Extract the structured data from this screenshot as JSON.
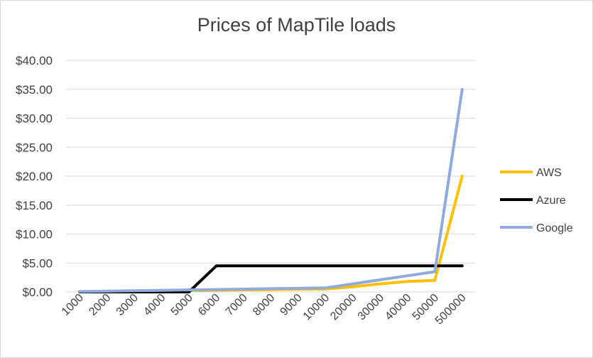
{
  "chart_data": {
    "type": "line",
    "title": "Prices of MapTile loads",
    "xlabel": "",
    "ylabel": "",
    "categories": [
      "1000",
      "2000",
      "3000",
      "4000",
      "5000",
      "6000",
      "7000",
      "8000",
      "9000",
      "10000",
      "20000",
      "30000",
      "40000",
      "50000",
      "500000"
    ],
    "y_ticks": [
      "$0.00",
      "$5.00",
      "$10.00",
      "$15.00",
      "$20.00",
      "$25.00",
      "$30.00",
      "$35.00",
      "$40.00"
    ],
    "ylim": [
      0,
      40
    ],
    "grid": true,
    "legend_position": "right",
    "series": [
      {
        "name": "AWS",
        "color": "#FFC000",
        "values": [
          0.05,
          0.1,
          0.15,
          0.2,
          0.25,
          0.3,
          0.35,
          0.4,
          0.45,
          0.5,
          0.9,
          1.4,
          1.8,
          2.0,
          20.0
        ]
      },
      {
        "name": "Azure",
        "color": "#000000",
        "values": [
          0,
          0,
          0,
          0,
          0,
          4.5,
          4.5,
          4.5,
          4.5,
          4.5,
          4.5,
          4.5,
          4.5,
          4.5,
          4.5
        ]
      },
      {
        "name": "Google",
        "color": "#8FAADC",
        "values": [
          0.07,
          0.14,
          0.21,
          0.28,
          0.35,
          0.42,
          0.49,
          0.56,
          0.63,
          0.7,
          1.4,
          2.1,
          2.8,
          3.5,
          35.0
        ]
      }
    ]
  }
}
